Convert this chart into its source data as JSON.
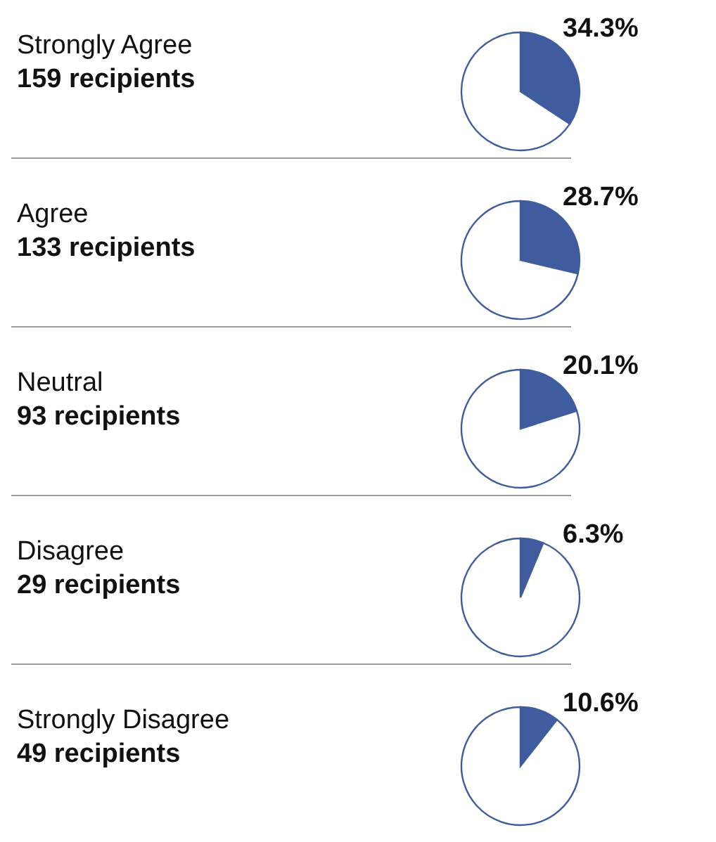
{
  "chart_data": [
    {
      "type": "pie",
      "title": "Strongly Agree",
      "subtitle": "159 recipients",
      "categories": [
        null,
        null
      ],
      "values": [
        34.3,
        65.7
      ],
      "colors": [
        "#3f5c9f",
        "#ffffff"
      ],
      "value_labels": [
        "34.3%",
        null
      ]
    },
    {
      "type": "pie",
      "title": "Agree",
      "subtitle": "133 recipients",
      "categories": [
        null,
        null
      ],
      "values": [
        28.7,
        71.3
      ],
      "colors": [
        "#3f5c9f",
        "#ffffff"
      ],
      "value_labels": [
        "28.7%",
        null
      ]
    },
    {
      "type": "pie",
      "title": "Neutral",
      "subtitle": "93 recipients",
      "categories": [
        null,
        null
      ],
      "values": [
        20.1,
        79.9
      ],
      "colors": [
        "#3f5c9f",
        "#ffffff"
      ],
      "value_labels": [
        "20.1%",
        null
      ]
    },
    {
      "type": "pie",
      "title": "Disagree",
      "subtitle": "29 recipients",
      "categories": [
        null,
        null
      ],
      "values": [
        6.3,
        93.7
      ],
      "colors": [
        "#3f5c9f",
        "#ffffff"
      ],
      "value_labels": [
        "6.3%",
        null
      ]
    },
    {
      "type": "pie",
      "title": "Strongly Disagree",
      "subtitle": "49 recipients",
      "categories": [
        null,
        null
      ],
      "values": [
        10.6,
        89.4
      ],
      "colors": [
        "#3f5c9f",
        "#ffffff"
      ],
      "value_labels": [
        "10.6%",
        null
      ]
    }
  ]
}
